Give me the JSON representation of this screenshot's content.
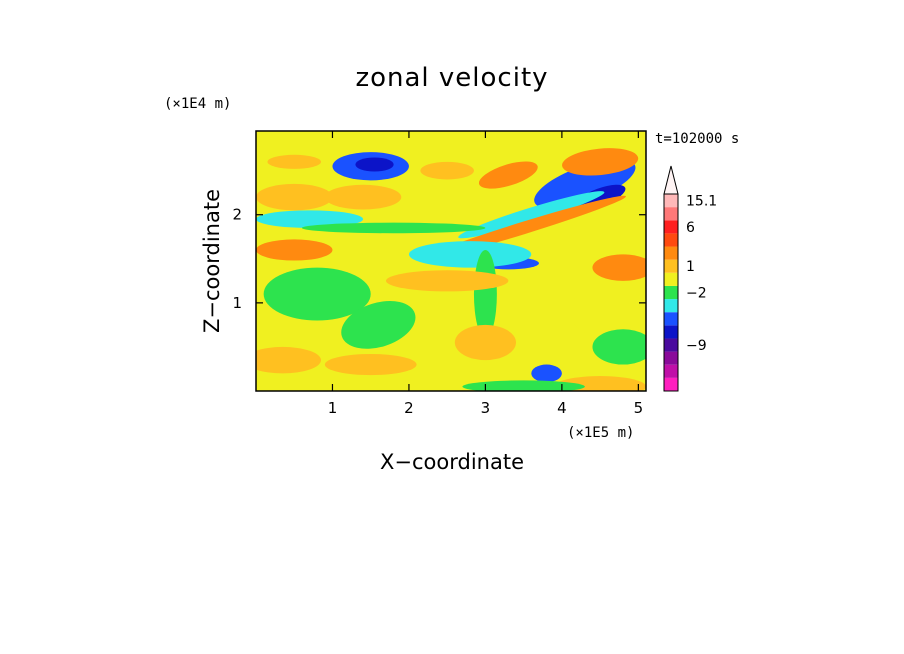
{
  "chart_data": {
    "type": "heatmap",
    "title": "zonal velocity",
    "xlabel": "X−coordinate",
    "ylabel": "Z−coordinate",
    "x_scale_label": "(×1E5 m)",
    "y_scale_label": "(×1E4 m)",
    "time_label": "t=102000 s",
    "xlim": [
      0,
      5.1
    ],
    "ylim": [
      0,
      2.95
    ],
    "x_ticks": [
      {
        "value": 1,
        "label": "1"
      },
      {
        "value": 2,
        "label": "2"
      },
      {
        "value": 3,
        "label": "3"
      },
      {
        "value": 4,
        "label": "4"
      },
      {
        "value": 5,
        "label": "5"
      }
    ],
    "y_ticks": [
      {
        "value": 1,
        "label": "1"
      },
      {
        "value": 2,
        "label": "2"
      }
    ],
    "colorbar": {
      "colors": [
        "#ff1fbf",
        "#c010a8",
        "#8a0a9a",
        "#4a0a9e",
        "#0c14c8",
        "#1a52ff",
        "#31e8e8",
        "#2de34e",
        "#f0f020",
        "#ffc020",
        "#ff8a10",
        "#ff4a10",
        "#ff2020",
        "#ff7878",
        "#ffb8b8"
      ],
      "tick_labels": [
        {
          "label": "15.1",
          "bin": 14
        },
        {
          "label": "6",
          "bin": 12
        },
        {
          "label": "1",
          "bin": 9
        },
        {
          "label": "−2",
          "bin": 7
        },
        {
          "label": "−9",
          "bin": 3
        }
      ],
      "extend_max": true
    },
    "field_blobs": [
      {
        "x": 0.5,
        "z": 2.6,
        "rx": 0.35,
        "rz": 0.08,
        "a": 0,
        "v": 1.5
      },
      {
        "x": 1.5,
        "z": 2.55,
        "rx": 0.5,
        "rz": 0.16,
        "a": 0,
        "v": -4
      },
      {
        "x": 1.55,
        "z": 2.57,
        "rx": 0.25,
        "rz": 0.08,
        "a": 0,
        "v": -8
      },
      {
        "x": 2.5,
        "z": 2.5,
        "rx": 0.35,
        "rz": 0.1,
        "a": 0,
        "v": 1.5
      },
      {
        "x": 3.3,
        "z": 2.45,
        "rx": 0.4,
        "rz": 0.12,
        "a": 0.3,
        "v": 2.5
      },
      {
        "x": 4.3,
        "z": 2.35,
        "rx": 0.7,
        "rz": 0.2,
        "a": 0.35,
        "v": -4
      },
      {
        "x": 4.5,
        "z": 2.2,
        "rx": 0.35,
        "rz": 0.1,
        "a": 0.35,
        "v": -8
      },
      {
        "x": 4.5,
        "z": 2.6,
        "rx": 0.5,
        "rz": 0.15,
        "a": 0.1,
        "v": 2.5
      },
      {
        "x": 3.6,
        "z": 2.0,
        "rx": 1.0,
        "rz": 0.08,
        "a": 0.3,
        "v": -1.5
      },
      {
        "x": 3.5,
        "z": 1.85,
        "rx": 1.4,
        "rz": 0.07,
        "a": 0.3,
        "v": 2.5
      },
      {
        "x": 0.7,
        "z": 1.95,
        "rx": 0.7,
        "rz": 0.1,
        "a": 0,
        "v": -1.5
      },
      {
        "x": 1.8,
        "z": 1.85,
        "rx": 1.2,
        "rz": 0.06,
        "a": 0,
        "v": -1
      },
      {
        "x": 0.5,
        "z": 2.2,
        "rx": 0.5,
        "rz": 0.15,
        "a": 0,
        "v": 1.5
      },
      {
        "x": 1.4,
        "z": 2.2,
        "rx": 0.5,
        "rz": 0.14,
        "a": 0,
        "v": 2
      },
      {
        "x": 3.3,
        "z": 1.45,
        "rx": 0.4,
        "rz": 0.07,
        "a": 0,
        "v": -4
      },
      {
        "x": 2.8,
        "z": 1.55,
        "rx": 0.8,
        "rz": 0.15,
        "a": 0,
        "v": -1.5
      },
      {
        "x": 3.0,
        "z": 1.1,
        "rx": 0.15,
        "rz": 0.5,
        "a": 0,
        "v": -1
      },
      {
        "x": 0.5,
        "z": 1.6,
        "rx": 0.5,
        "rz": 0.12,
        "a": 0,
        "v": 2.5
      },
      {
        "x": 4.8,
        "z": 1.4,
        "rx": 0.4,
        "rz": 0.15,
        "a": 0,
        "v": 2.5
      },
      {
        "x": 2.5,
        "z": 1.25,
        "rx": 0.8,
        "rz": 0.12,
        "a": 0,
        "v": 2
      },
      {
        "x": 0.8,
        "z": 1.1,
        "rx": 0.7,
        "rz": 0.3,
        "a": 0,
        "v": -1
      },
      {
        "x": 1.6,
        "z": 0.75,
        "rx": 0.5,
        "rz": 0.25,
        "a": 0.3,
        "v": -1
      },
      {
        "x": 3.0,
        "z": 0.55,
        "rx": 0.4,
        "rz": 0.2,
        "a": 0,
        "v": 2
      },
      {
        "x": 4.6,
        "z": 0.9,
        "rx": 0.5,
        "rz": 0.3,
        "a": 0,
        "v": 0.3
      },
      {
        "x": 4.8,
        "z": 0.5,
        "rx": 0.4,
        "rz": 0.2,
        "a": 0,
        "v": -1
      },
      {
        "x": 0.35,
        "z": 0.35,
        "rx": 0.5,
        "rz": 0.15,
        "a": 0,
        "v": 2
      },
      {
        "x": 1.5,
        "z": 0.3,
        "rx": 0.6,
        "rz": 0.12,
        "a": 0,
        "v": 1.5
      },
      {
        "x": 3.8,
        "z": 0.2,
        "rx": 0.2,
        "rz": 0.1,
        "a": 0,
        "v": -3
      },
      {
        "x": 4.5,
        "z": 0.05,
        "rx": 0.6,
        "rz": 0.12,
        "a": 0,
        "v": 2
      },
      {
        "x": 3.5,
        "z": 0.05,
        "rx": 0.8,
        "rz": 0.07,
        "a": 0,
        "v": -1
      }
    ]
  }
}
